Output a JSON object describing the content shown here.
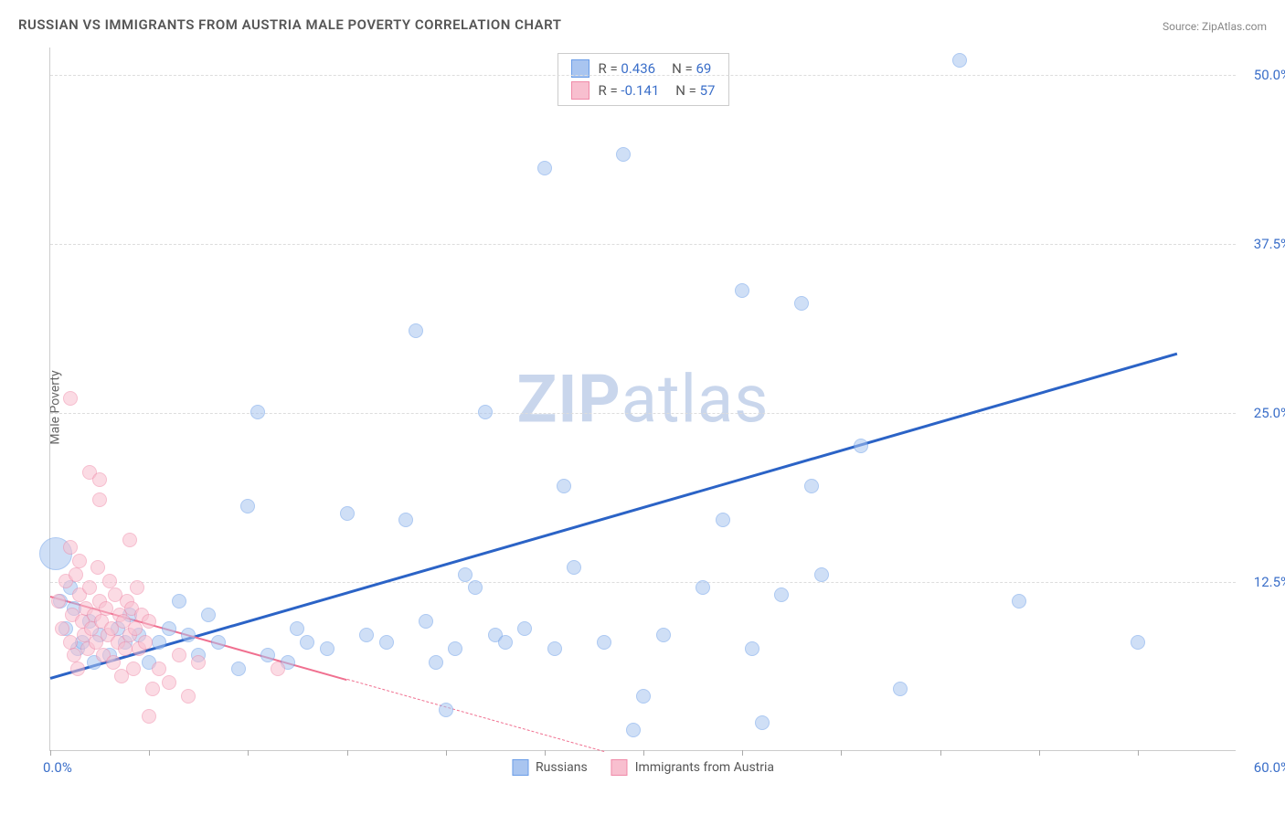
{
  "title": "RUSSIAN VS IMMIGRANTS FROM AUSTRIA MALE POVERTY CORRELATION CHART",
  "source": "Source: ZipAtlas.com",
  "y_axis_title": "Male Poverty",
  "watermark_bold": "ZIP",
  "watermark_light": "atlas",
  "chart": {
    "type": "scatter",
    "xlim": [
      0,
      60
    ],
    "ylim": [
      0,
      52
    ],
    "x_ticks": [
      0,
      5,
      10,
      15,
      20,
      25,
      30,
      35,
      40,
      45,
      50,
      55
    ],
    "y_gridlines": [
      12.5,
      25.0,
      37.5,
      50.0
    ],
    "y_tick_labels": [
      "12.5%",
      "25.0%",
      "37.5%",
      "50.0%"
    ],
    "x_label_min": "0.0%",
    "x_label_max": "60.0%",
    "background_color": "#ffffff",
    "grid_color": "#dddddd",
    "axis_color": "#cccccc",
    "point_radius": 8,
    "point_opacity": 0.55,
    "series": [
      {
        "name": "Russians",
        "color_fill": "#a9c5f0",
        "color_stroke": "#6a9de8",
        "R": "0.436",
        "N": "69",
        "regression": {
          "x1": 0,
          "y1": 5.5,
          "x2": 57,
          "y2": 29.5,
          "color": "#2b63c6",
          "width": 2.5,
          "dashed_after_x": null
        },
        "points": [
          [
            0.3,
            14.5,
            18
          ],
          [
            0.5,
            11.0
          ],
          [
            0.8,
            9.0
          ],
          [
            1.0,
            12.0
          ],
          [
            1.2,
            10.5
          ],
          [
            1.4,
            7.5
          ],
          [
            1.6,
            8.0
          ],
          [
            2.0,
            9.5
          ],
          [
            2.2,
            6.5
          ],
          [
            2.5,
            8.5
          ],
          [
            3.0,
            7.0
          ],
          [
            3.4,
            9.0
          ],
          [
            3.8,
            8.0
          ],
          [
            4.0,
            10.0
          ],
          [
            4.5,
            8.5
          ],
          [
            5.0,
            6.5
          ],
          [
            5.5,
            8.0
          ],
          [
            6.0,
            9.0
          ],
          [
            6.5,
            11.0
          ],
          [
            7.0,
            8.5
          ],
          [
            7.5,
            7.0
          ],
          [
            8.0,
            10.0
          ],
          [
            8.5,
            8.0
          ],
          [
            9.5,
            6.0
          ],
          [
            10.0,
            18.0
          ],
          [
            10.5,
            25.0
          ],
          [
            11.0,
            7.0
          ],
          [
            12.0,
            6.5
          ],
          [
            12.5,
            9.0
          ],
          [
            13.0,
            8.0
          ],
          [
            14.0,
            7.5
          ],
          [
            15.0,
            17.5
          ],
          [
            16.0,
            8.5
          ],
          [
            17.0,
            8.0
          ],
          [
            18.0,
            17.0
          ],
          [
            18.5,
            31.0
          ],
          [
            19.0,
            9.5
          ],
          [
            19.5,
            6.5
          ],
          [
            20.0,
            3.0
          ],
          [
            20.5,
            7.5
          ],
          [
            21.0,
            13.0
          ],
          [
            21.5,
            12.0
          ],
          [
            22.0,
            25.0
          ],
          [
            22.5,
            8.5
          ],
          [
            23.0,
            8.0
          ],
          [
            24.0,
            9.0
          ],
          [
            25.0,
            43.0
          ],
          [
            25.5,
            7.5
          ],
          [
            26.0,
            19.5
          ],
          [
            26.5,
            13.5
          ],
          [
            28.0,
            8.0
          ],
          [
            29.0,
            44.0
          ],
          [
            29.5,
            1.5
          ],
          [
            30.0,
            4.0
          ],
          [
            31.0,
            8.5
          ],
          [
            33.0,
            12.0
          ],
          [
            34.0,
            17.0
          ],
          [
            35.0,
            34.0
          ],
          [
            35.5,
            7.5
          ],
          [
            36.0,
            2.0
          ],
          [
            37.0,
            11.5
          ],
          [
            38.0,
            33.0
          ],
          [
            38.5,
            19.5
          ],
          [
            39.0,
            13.0
          ],
          [
            41.0,
            22.5
          ],
          [
            43.0,
            4.5
          ],
          [
            46.0,
            51.0
          ],
          [
            49.0,
            11.0
          ],
          [
            55.0,
            8.0
          ]
        ]
      },
      {
        "name": "Immigrants from Austria",
        "color_fill": "#f8bfcf",
        "color_stroke": "#f08aa8",
        "R": "-0.141",
        "N": "57",
        "regression": {
          "x1": 0,
          "y1": 11.5,
          "x2": 28,
          "y2": 0,
          "color": "#f07090",
          "width": 2.2,
          "dashed_after_x": 15
        },
        "points": [
          [
            0.4,
            11.0
          ],
          [
            0.6,
            9.0
          ],
          [
            0.8,
            12.5
          ],
          [
            1.0,
            8.0
          ],
          [
            1.1,
            10.0
          ],
          [
            1.2,
            7.0
          ],
          [
            1.3,
            13.0
          ],
          [
            1.4,
            6.0
          ],
          [
            1.5,
            11.5
          ],
          [
            1.6,
            9.5
          ],
          [
            1.7,
            8.5
          ],
          [
            1.8,
            10.5
          ],
          [
            1.9,
            7.5
          ],
          [
            2.0,
            12.0
          ],
          [
            2.1,
            9.0
          ],
          [
            2.2,
            10.0
          ],
          [
            2.3,
            8.0
          ],
          [
            2.4,
            13.5
          ],
          [
            2.5,
            11.0
          ],
          [
            2.6,
            9.5
          ],
          [
            2.7,
            7.0
          ],
          [
            2.8,
            10.5
          ],
          [
            2.9,
            8.5
          ],
          [
            3.0,
            12.5
          ],
          [
            3.1,
            9.0
          ],
          [
            3.2,
            6.5
          ],
          [
            3.3,
            11.5
          ],
          [
            3.4,
            8.0
          ],
          [
            3.5,
            10.0
          ],
          [
            3.6,
            5.5
          ],
          [
            3.7,
            9.5
          ],
          [
            3.8,
            7.5
          ],
          [
            3.9,
            11.0
          ],
          [
            4.0,
            8.5
          ],
          [
            4.1,
            10.5
          ],
          [
            4.2,
            6.0
          ],
          [
            4.3,
            9.0
          ],
          [
            4.4,
            12.0
          ],
          [
            4.5,
            7.5
          ],
          [
            4.6,
            10.0
          ],
          [
            4.8,
            8.0
          ],
          [
            5.0,
            9.5
          ],
          [
            5.2,
            4.5
          ],
          [
            5.5,
            6.0
          ],
          [
            6.0,
            5.0
          ],
          [
            6.5,
            7.0
          ],
          [
            7.0,
            4.0
          ],
          [
            7.5,
            6.5
          ],
          [
            1.0,
            15.0
          ],
          [
            1.5,
            14.0
          ],
          [
            2.0,
            20.5
          ],
          [
            2.5,
            18.5
          ],
          [
            1.0,
            26.0
          ],
          [
            2.5,
            20.0
          ],
          [
            4.0,
            15.5
          ],
          [
            5.0,
            2.5
          ],
          [
            11.5,
            6.0
          ]
        ]
      }
    ]
  }
}
